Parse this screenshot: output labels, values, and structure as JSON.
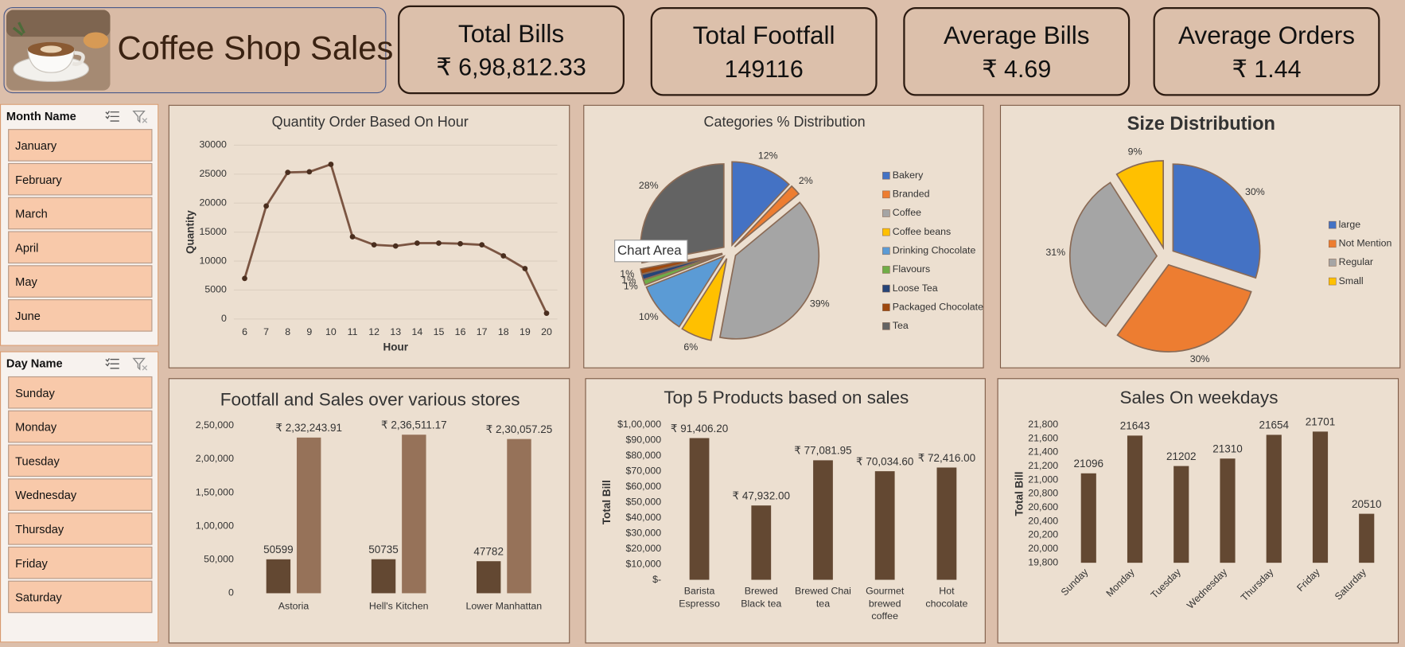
{
  "header": {
    "title": "Coffee Shop Sales"
  },
  "kpis": [
    {
      "label": "Total Bills",
      "value": "₹ 6,98,812.33"
    },
    {
      "label": "Total Footfall",
      "value": "149116"
    },
    {
      "label": "Average Bills",
      "value": "₹ 4.69"
    },
    {
      "label": "Average Orders",
      "value": "₹ 1.44"
    }
  ],
  "slicers": [
    {
      "title": "Month Name",
      "items": [
        "January",
        "February",
        "March",
        "April",
        "May",
        "June"
      ]
    },
    {
      "title": "Day Name",
      "items": [
        "Sunday",
        "Monday",
        "Tuesday",
        "Wednesday",
        "Thursday",
        "Friday",
        "Saturday"
      ]
    }
  ],
  "chart_data": [
    {
      "type": "line",
      "title": "Quantity Order Based On Hour",
      "x_label": "Hour",
      "y_label": "Quantity",
      "categories": [
        6,
        7,
        8,
        9,
        10,
        11,
        12,
        13,
        14,
        15,
        16,
        17,
        18,
        19,
        20
      ],
      "values": [
        7000,
        19500,
        25300,
        25400,
        26700,
        14200,
        12800,
        12600,
        13100,
        13100,
        13000,
        12800,
        10900,
        8700,
        1000
      ],
      "color": "#7b5542",
      "marker_color": "#4a2e1e",
      "ylim": [
        0,
        30000
      ],
      "yticks": [
        0,
        5000,
        10000,
        15000,
        20000,
        25000,
        30000
      ],
      "grid": true
    },
    {
      "type": "pie",
      "title": "Categories % Distribution",
      "tooltip": "Chart Area",
      "categories": [
        "Bakery",
        "Branded",
        "Coffee",
        "Coffee beans",
        "Drinking Chocolate",
        "Flavours",
        "Loose Tea",
        "Packaged Chocolate",
        "Tea"
      ],
      "values": [
        12,
        2,
        39,
        6,
        10,
        1,
        1,
        1,
        28
      ],
      "value_labels": [
        "12%",
        "2%",
        "39%",
        "6%",
        "10%",
        "1%",
        "1%",
        "1%",
        "28%"
      ],
      "colors": [
        "#4472c4",
        "#ed7d31",
        "#a5a5a5",
        "#ffc000",
        "#5b9bd5",
        "#70ad47",
        "#264478",
        "#9e480e",
        "#636363"
      ],
      "legend": "right"
    },
    {
      "type": "pie",
      "title": "Size Distribution",
      "categories": [
        "large",
        "Not Mention",
        "Regular",
        "Small"
      ],
      "values": [
        30,
        30,
        31,
        9
      ],
      "value_labels": [
        "30%",
        "30%",
        "31%",
        "9%"
      ],
      "colors": [
        "#4472c4",
        "#ed7d31",
        "#a5a5a5",
        "#ffc000"
      ],
      "legend": "right"
    },
    {
      "type": "bar",
      "title": "Footfall and Sales over various stores",
      "categories": [
        "Astoria",
        "Hell's Kitchen",
        "Lower Manhattan"
      ],
      "series": [
        {
          "color": "#634832",
          "values": [
            50599,
            50735,
            47782
          ]
        },
        {
          "color": "#967259",
          "values": [
            232243.91,
            236511.17,
            230057.25
          ],
          "value_labels": [
            "₹ 2,32,243.91",
            "₹ 2,36,511.17",
            "₹ 2,30,057.25"
          ]
        }
      ],
      "ylim": [
        0,
        250000
      ],
      "yticks": [
        0,
        {
          "value": 50000,
          "label": "50,000"
        },
        {
          "value": 100000,
          "label": "1,00,000"
        },
        {
          "value": 150000,
          "label": "1,50,000"
        },
        {
          "value": 200000,
          "label": "2,00,000"
        },
        {
          "value": 250000,
          "label": "2,50,000"
        }
      ],
      "grid": false
    },
    {
      "type": "bar",
      "title": "Top 5 Products based on sales",
      "y_label": "Total Bill",
      "categories": [
        "Barista Espresso",
        "Brewed Black tea",
        "Brewed Chai tea",
        "Gourmet brewed coffee",
        "Hot chocolate"
      ],
      "values": [
        91406.2,
        47932.0,
        77081.95,
        70034.6,
        72416.0
      ],
      "value_labels": [
        "₹ 91,406.20",
        "₹ 47,932.00",
        "₹ 77,081.95",
        "₹ 70,034.60",
        "₹ 72,416.00"
      ],
      "color": "#634832",
      "ylim": [
        0,
        100000
      ],
      "yticks": [
        {
          "value": 0,
          "label": "$-"
        },
        {
          "value": 10000,
          "label": "$10,000"
        },
        {
          "value": 20000,
          "label": "$20,000"
        },
        {
          "value": 30000,
          "label": "$30,000"
        },
        {
          "value": 40000,
          "label": "$40,000"
        },
        {
          "value": 50000,
          "label": "$50,000"
        },
        {
          "value": 60000,
          "label": "$60,000"
        },
        {
          "value": 70000,
          "label": "$70,000"
        },
        {
          "value": 80000,
          "label": "$80,000"
        },
        {
          "value": 90000,
          "label": "$90,000"
        },
        {
          "value": 100000,
          "label": "$1,00,000"
        }
      ],
      "grid": false
    },
    {
      "type": "bar",
      "title": "Sales On weekdays",
      "y_label": "Total Bill",
      "categories": [
        "Sunday",
        "Monday",
        "Tuesday",
        "Wednesday",
        "Thursday",
        "Friday",
        "Saturday"
      ],
      "values": [
        21096,
        21643,
        21202,
        21310,
        21654,
        21701,
        20510
      ],
      "color": "#634832",
      "ylim": [
        19800,
        21800
      ],
      "yticks": [
        {
          "value": 19800,
          "label": "19,800"
        },
        {
          "value": 20000,
          "label": "20,000"
        },
        {
          "value": 20200,
          "label": "20,200"
        },
        {
          "value": 20400,
          "label": "20,400"
        },
        {
          "value": 20600,
          "label": "20,600"
        },
        {
          "value": 20800,
          "label": "20,800"
        },
        {
          "value": 21000,
          "label": "21,000"
        },
        {
          "value": 21200,
          "label": "21,200"
        },
        {
          "value": 21400,
          "label": "21,400"
        },
        {
          "value": 21600,
          "label": "21,600"
        },
        {
          "value": 21800,
          "label": "21,800"
        }
      ],
      "grid": false
    }
  ]
}
